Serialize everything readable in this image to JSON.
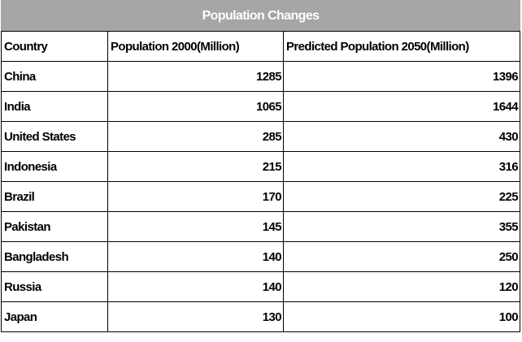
{
  "chart_data": {
    "type": "table",
    "title": "Population Changes",
    "columns": [
      "Country",
      "Population 2000(Million)",
      "Predicted Population 2050(Million)"
    ],
    "rows": [
      [
        "China",
        1285,
        1396
      ],
      [
        "India",
        1065,
        1644
      ],
      [
        "United States",
        285,
        430
      ],
      [
        "Indonesia",
        215,
        316
      ],
      [
        "Brazil",
        170,
        225
      ],
      [
        "Pakistan",
        145,
        355
      ],
      [
        "Bangladesh",
        140,
        250
      ],
      [
        "Russia",
        140,
        120
      ],
      [
        "Japan",
        130,
        100
      ]
    ],
    "colors": {
      "title_background": "#a6a6a6",
      "title_text": "#ffffff",
      "border": "#000000"
    }
  }
}
